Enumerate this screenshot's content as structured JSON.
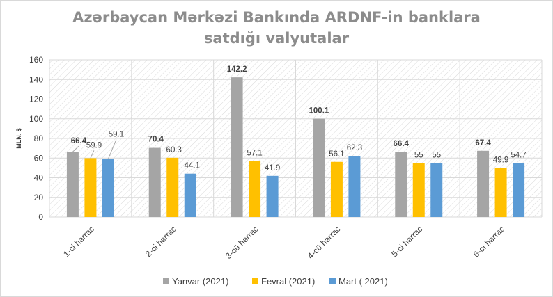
{
  "chart_data": {
    "type": "bar",
    "title_lines": [
      "Azərbaycan Mərkəzi Bankında ARDNF-in banklara",
      "satdığı valyutalar"
    ],
    "ylabel": "MLN. $",
    "ylim": [
      0,
      160
    ],
    "yticks": [
      "0",
      "20",
      "40",
      "60",
      "80",
      "100",
      "120",
      "140",
      "160"
    ],
    "categories": [
      "1-ci hərrac",
      "2-ci hərrac",
      "3-cü hərrac",
      "4-cü hərrac",
      "5-ci hərrac",
      "6-cı hərrac"
    ],
    "series": [
      {
        "name": "Yanvar (2021)",
        "color": "#a5a5a5",
        "values": [
          66.4,
          70.4,
          142.2,
          100.1,
          66.4,
          67.4
        ],
        "labels": [
          "66.4",
          "70.4",
          "142.2",
          "100.1",
          "66.4",
          "67.4"
        ]
      },
      {
        "name": "Fevral (2021)",
        "color": "#ffc000",
        "values": [
          59.9,
          60.3,
          57.1,
          56.1,
          55,
          49.9
        ],
        "labels": [
          "59.9",
          "60.3",
          "57.1",
          "56.1",
          "55",
          "49.9"
        ]
      },
      {
        "name": "Mart ( 2021)",
        "color": "#5b9bd5",
        "values": [
          59.1,
          44.1,
          41.9,
          62.3,
          55,
          54.7
        ],
        "labels": [
          "59.1",
          "44.1",
          "41.9",
          "62.3",
          "55",
          "54.7"
        ]
      }
    ],
    "grid": true,
    "legend_position": "bottom"
  }
}
